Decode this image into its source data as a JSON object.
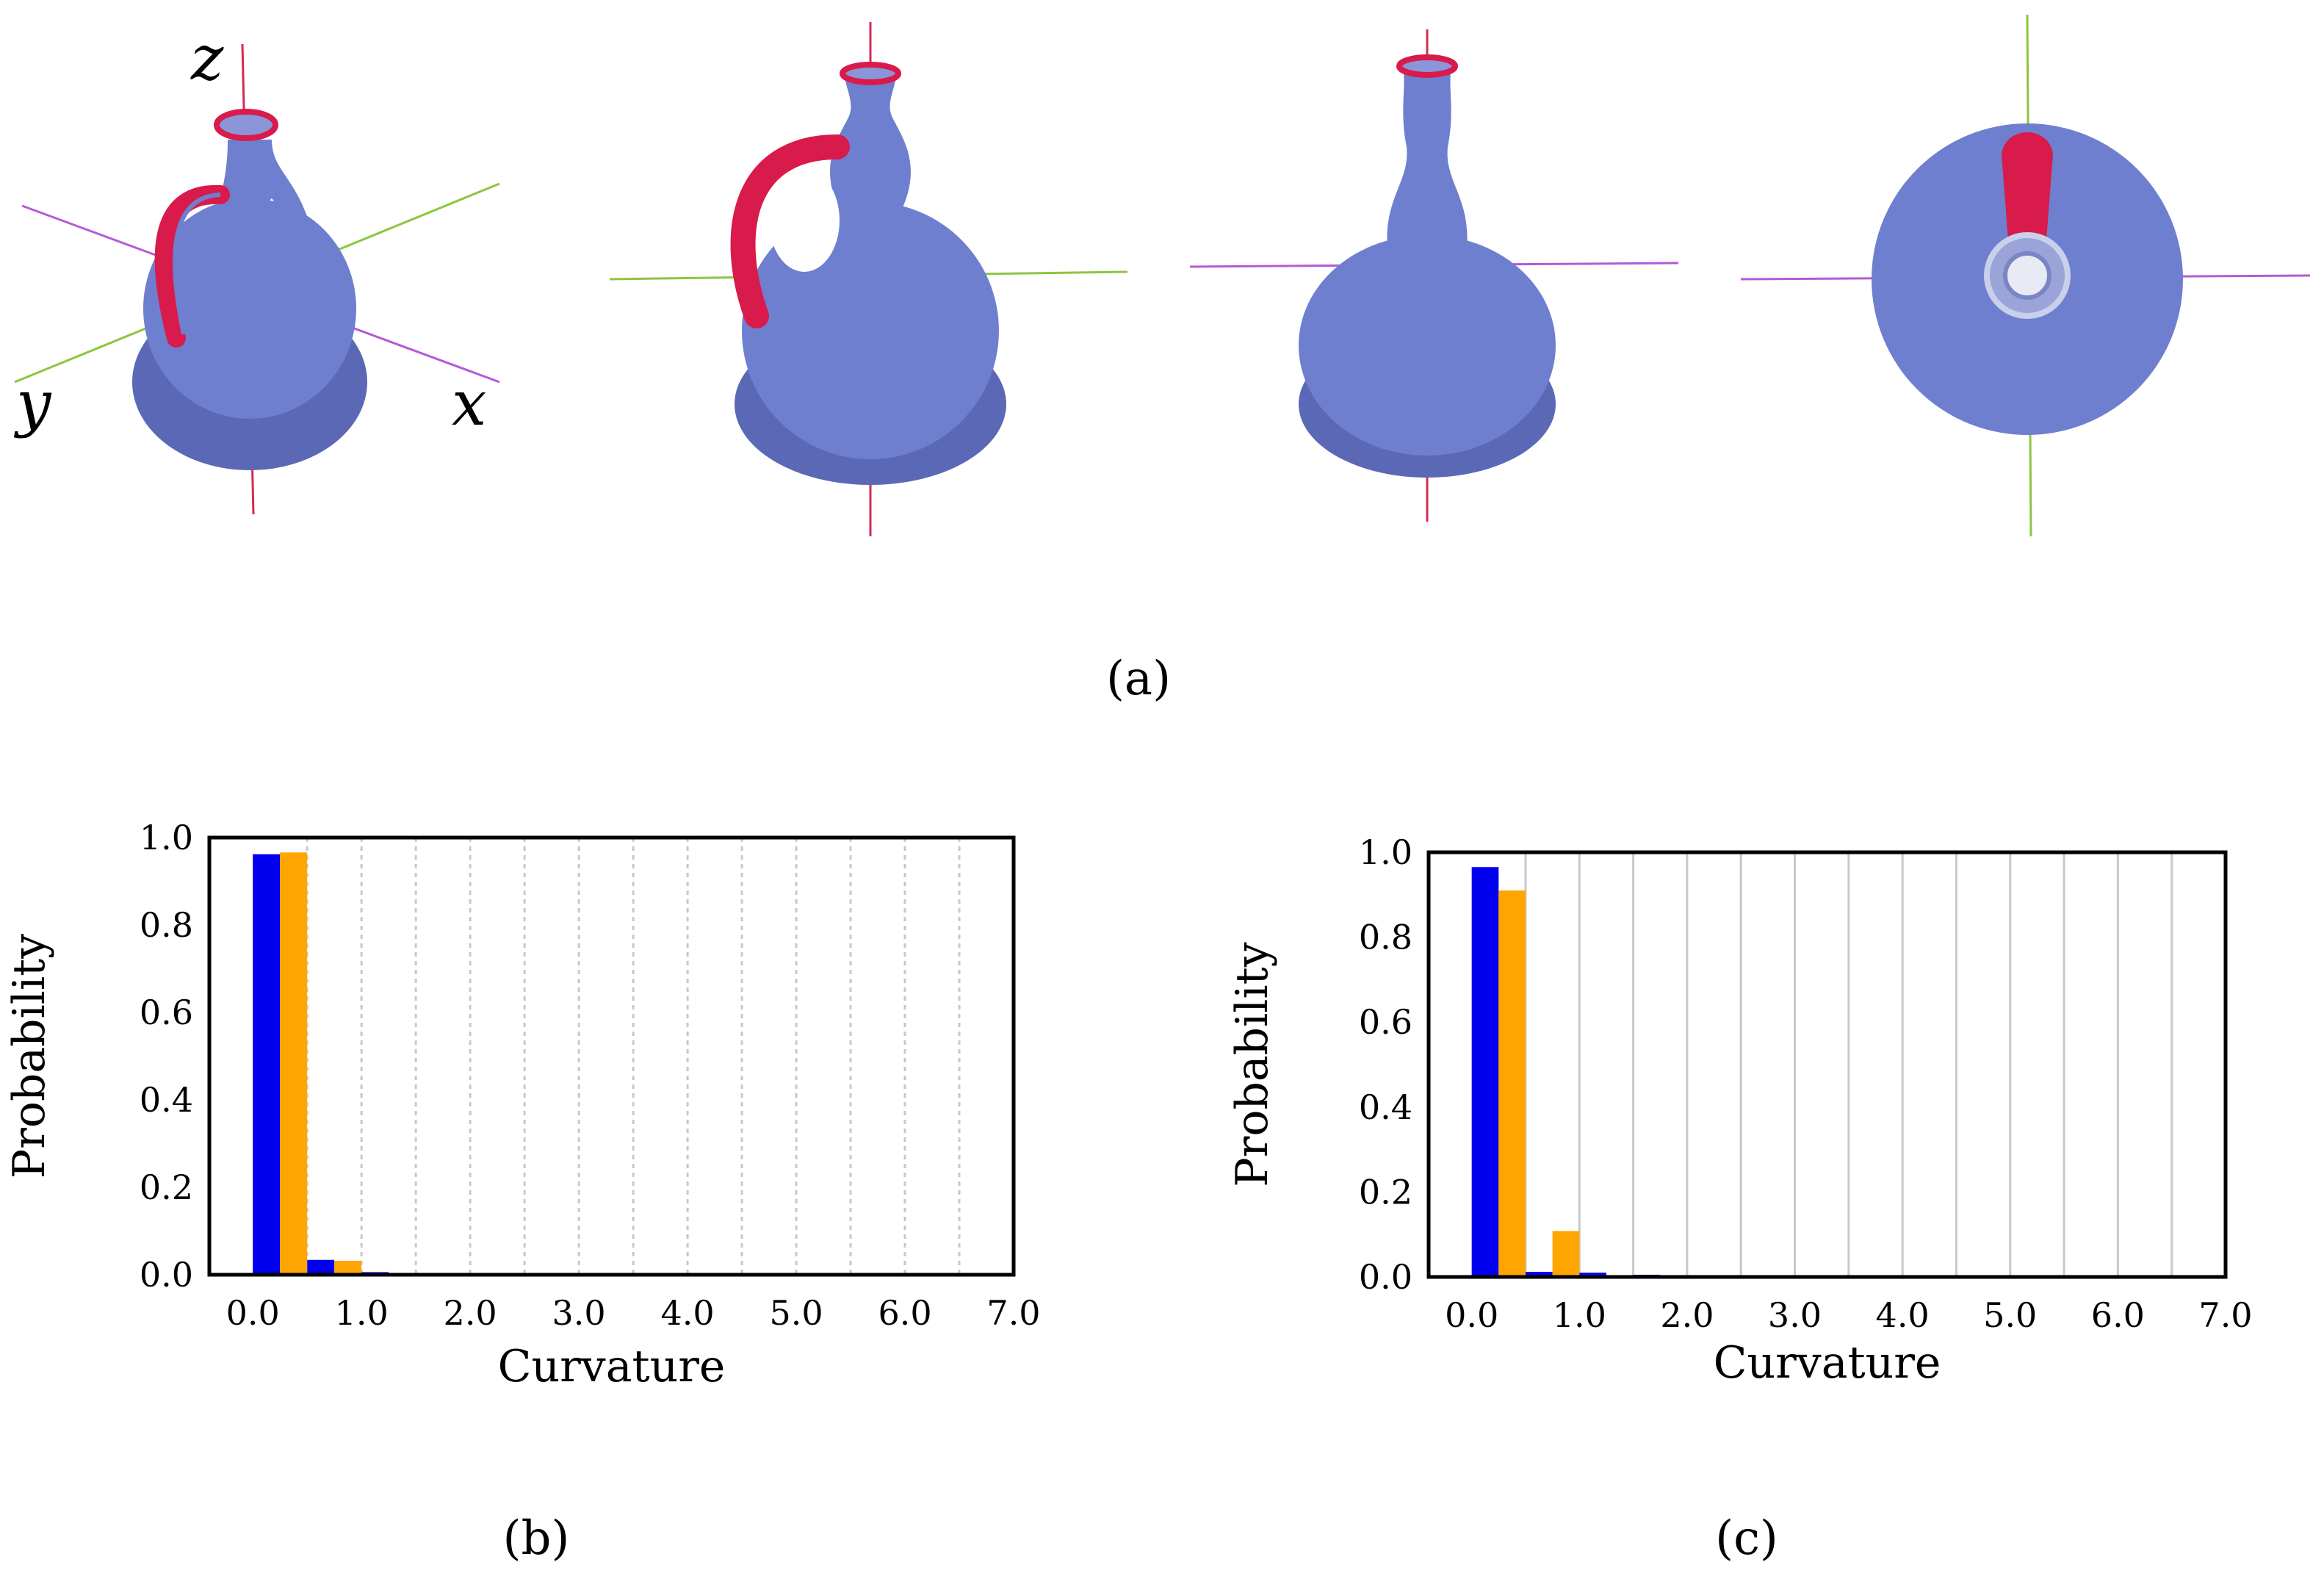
{
  "panel_labels": {
    "a": "(a)",
    "b": "(b)",
    "c": "(c)"
  },
  "axis_letters": {
    "x": "x",
    "y": "y",
    "z": "z"
  },
  "colors": {
    "vessel_body": "#6f7fcf",
    "vessel_shade": "#4a5599",
    "edge_highlight": "#d81b4a",
    "axis_x": "#b45ad6",
    "axis_y": "#8cc63f",
    "axis_z": "#d62a55",
    "series_1": "#0000ee",
    "series_2": "#ffa500",
    "grid": "#c8c8c8"
  },
  "chart_data": [
    {
      "type": "bar",
      "panel": "(b)",
      "xlabel": "Curvature",
      "ylabel": "Probability",
      "xlim": [
        -0.4,
        7.0
      ],
      "ylim": [
        0.0,
        1.0
      ],
      "xticks": [
        "0.0",
        "1.0",
        "2.0",
        "3.0",
        "4.0",
        "5.0",
        "6.0",
        "7.0"
      ],
      "yticks": [
        "0.0",
        "0.2",
        "0.4",
        "0.6",
        "0.8",
        "1.0"
      ],
      "grid": "vertical dashed",
      "bin_width": 0.25,
      "series": [
        {
          "color": "#0000ee",
          "x": [
            0.0,
            0.5,
            1.0,
            1.5,
            3.5
          ],
          "values": [
            0.962,
            0.034,
            0.006,
            0.004,
            0.003
          ]
        },
        {
          "color": "#ffa500",
          "x": [
            0.25,
            0.75,
            3.25
          ],
          "values": [
            0.966,
            0.032,
            0.002
          ]
        }
      ]
    },
    {
      "type": "bar",
      "panel": "(c)",
      "xlabel": "Curvature",
      "ylabel": "Probability",
      "xlim": [
        -0.4,
        7.0
      ],
      "ylim": [
        0.0,
        1.0
      ],
      "xticks": [
        "0.0",
        "1.0",
        "2.0",
        "3.0",
        "4.0",
        "5.0",
        "6.0",
        "7.0"
      ],
      "yticks": [
        "0.0",
        "0.2",
        "0.4",
        "0.6",
        "0.8",
        "1.0"
      ],
      "grid": "vertical solid",
      "bin_width": 0.25,
      "series": [
        {
          "color": "#0000ee",
          "x": [
            0.0,
            0.5,
            1.0,
            1.5,
            2.0
          ],
          "values": [
            0.965,
            0.012,
            0.01,
            0.005,
            0.003
          ]
        },
        {
          "color": "#ffa500",
          "x": [
            0.25,
            0.75,
            1.25
          ],
          "values": [
            0.91,
            0.108,
            0.004
          ]
        }
      ]
    }
  ]
}
